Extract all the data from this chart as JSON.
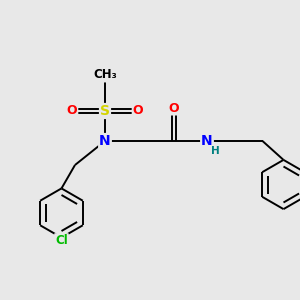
{
  "background_color": "#e8e8e8",
  "bond_color": "#000000",
  "atom_colors": {
    "N": "#0000ff",
    "O": "#ff0000",
    "S": "#d4d400",
    "Cl": "#00bb00",
    "C": "#000000",
    "H": "#008080"
  },
  "lw": 1.4,
  "figsize": [
    3.0,
    3.0
  ],
  "dpi": 100
}
